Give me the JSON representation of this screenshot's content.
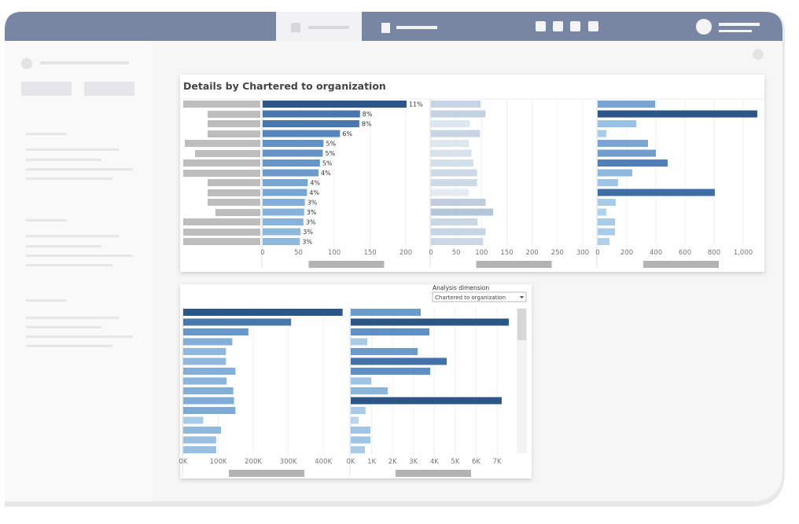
{
  "dashboard_title": "Details by Chartered to organization",
  "controls": {
    "label": "Analysis dimension",
    "value": "Chartered to organization"
  },
  "chart_data": [
    {
      "type": "bar",
      "orientation": "horizontal",
      "categories": [
        null,
        null,
        null,
        null,
        null,
        null,
        null,
        null,
        null,
        null,
        null,
        null,
        null,
        null,
        null
      ],
      "values": [
        201,
        136,
        135,
        108,
        85,
        84,
        80,
        78,
        63,
        62,
        59,
        58,
        57,
        53,
        52
      ],
      "value_labels": [
        "11%",
        "8%",
        "8%",
        "6%",
        "5%",
        "5%",
        "5%",
        "4%",
        "4%",
        "4%",
        "3%",
        "3%",
        "3%",
        "3%",
        "3%"
      ],
      "colors": [
        "#2c5687",
        "#4a77ab",
        "#4a77ab",
        "#5585ba",
        "#6393c6",
        "#6393c6",
        "#6696c8",
        "#6b9acb",
        "#78a6d3",
        "#78a6d3",
        "#82aed8",
        "#86b1d9",
        "#88b3da",
        "#8fb8dd",
        "#8fb8dd"
      ],
      "xlim": [
        0,
        234
      ],
      "xticks": [
        0,
        50,
        100,
        150,
        200
      ],
      "grid": true
    },
    {
      "type": "bar",
      "orientation": "horizontal",
      "categories": [
        null,
        null,
        null,
        null,
        null,
        null,
        null,
        null,
        null,
        null,
        null,
        null,
        null,
        null,
        null
      ],
      "values": [
        98,
        108,
        77,
        97,
        75,
        80,
        84,
        91,
        91,
        75,
        108,
        123,
        92,
        108,
        103
      ],
      "colors": [
        "#c6d4e3",
        "#c3d1e1",
        "#dde7f0",
        "#c6d4e3",
        "#dde7f0",
        "#d6e1ec",
        "#d3dfeb",
        "#ccd9e6",
        "#ccd9e6",
        "#e3ebf3",
        "#bfcede",
        "#b3c5d9",
        "#c9d6e4",
        "#c6d4e3",
        "#cad7e5"
      ],
      "xlim": [
        0,
        328
      ],
      "xticks": [
        0,
        50,
        100,
        150,
        200,
        250,
        300
      ],
      "grid": true
    },
    {
      "type": "bar",
      "orientation": "horizontal",
      "categories": [
        null,
        null,
        null,
        null,
        null,
        null,
        null,
        null,
        null,
        null,
        null,
        null,
        null,
        null,
        null
      ],
      "values": [
        395,
        1097,
        265,
        59,
        346,
        400,
        481,
        238,
        140,
        805,
        124,
        59,
        119,
        119,
        81
      ],
      "colors": [
        "#7aa5d2",
        "#2c5687",
        "#9ac0e3",
        "#a8cbe8",
        "#7aa5d2",
        "#6e9dcd",
        "#4f7fb6",
        "#8fb8dd",
        "#a0c4e5",
        "#3e6ea5",
        "#a8cbe8",
        "#b0d0eb",
        "#a8cbe8",
        "#a8cbe8",
        "#b0d0eb"
      ],
      "xlim": [
        0,
        1146
      ],
      "xticks": [
        0,
        200,
        400,
        600,
        800,
        {
          "value": 1000,
          "label": "1,000"
        }
      ],
      "grid": true
    },
    {
      "type": "bar",
      "orientation": "horizontal",
      "categories": [
        null,
        null,
        null,
        null,
        null,
        null,
        null,
        null,
        null,
        null,
        null,
        null,
        null,
        null,
        null
      ],
      "values": [
        455000,
        308000,
        186000,
        140000,
        122000,
        122000,
        149000,
        124000,
        143000,
        145000,
        149000,
        57000,
        108000,
        94000,
        94000
      ],
      "colors": [
        "#2c5687",
        "#4a77ab",
        "#6898c9",
        "#82aed8",
        "#90b8de",
        "#90b8de",
        "#82aed8",
        "#8cb5dc",
        "#82aed8",
        "#80acd7",
        "#7eabd6",
        "#a8cbe8",
        "#8fb8dd",
        "#98bee1",
        "#98bee1"
      ],
      "xlim": [
        0,
        476000
      ],
      "xticks": [
        {
          "value": 0,
          "label": "0K"
        },
        {
          "value": 100000,
          "label": "100K"
        },
        {
          "value": 200000,
          "label": "200K"
        },
        {
          "value": 300000,
          "label": "300K"
        },
        {
          "value": 400000,
          "label": "400K"
        }
      ],
      "grid": true
    },
    {
      "type": "bar",
      "orientation": "horizontal",
      "categories": [
        null,
        null,
        null,
        null,
        null,
        null,
        null,
        null,
        null,
        null,
        null,
        null,
        null,
        null,
        null
      ],
      "values": [
        3350,
        7560,
        3760,
        790,
        3200,
        4590,
        3800,
        980,
        1770,
        7220,
        710,
        380,
        940,
        940,
        680
      ],
      "colors": [
        "#6b9acb",
        "#2c5687",
        "#5f8fc3",
        "#a8cbe8",
        "#6b9acb",
        "#4172aa",
        "#5f8fc3",
        "#a0c4e5",
        "#8cb5dc",
        "#2c5687",
        "#a8cbe8",
        "#b8d5ee",
        "#a0c4e5",
        "#a0c4e5",
        "#a8cbe8"
      ],
      "xlim": [
        0,
        7900
      ],
      "xticks": [
        {
          "value": 0,
          "label": "0K"
        },
        {
          "value": 1000,
          "label": "1K"
        },
        {
          "value": 2000,
          "label": "2K"
        },
        {
          "value": 3000,
          "label": "3K"
        },
        {
          "value": 4000,
          "label": "4K"
        },
        {
          "value": 5000,
          "label": "5K"
        },
        {
          "value": 6000,
          "label": "6K"
        },
        {
          "value": 7000,
          "label": "7K"
        }
      ],
      "grid": true
    }
  ]
}
